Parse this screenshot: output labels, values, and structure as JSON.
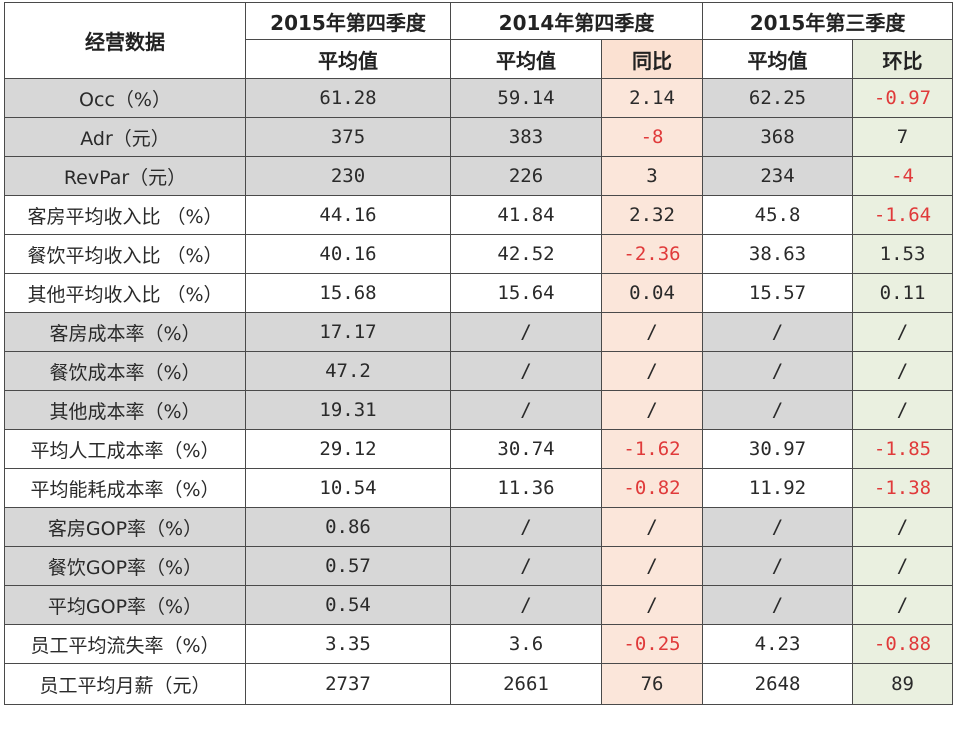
{
  "header": {
    "metric_label": "经营数据",
    "q4_2015": "2015年第四季度",
    "q4_2014": "2014年第四季度",
    "q3_2015": "2015年第三季度",
    "avg_label": "平均值",
    "yoy_label": "同比",
    "qoq_label": "环比"
  },
  "rows": [
    {
      "metric": "Occ（%）",
      "q4_2015": "61.28",
      "q4_2014": "59.14",
      "yoy": "2.14",
      "q3_2015": "62.25",
      "qoq": "-0.97",
      "shade": "gray"
    },
    {
      "metric": "Adr（元）",
      "q4_2015": "375",
      "q4_2014": "383",
      "yoy": "-8",
      "q3_2015": "368",
      "qoq": "7",
      "shade": "gray"
    },
    {
      "metric": "RevPar（元）",
      "q4_2015": "230",
      "q4_2014": "226",
      "yoy": "3",
      "q3_2015": "234",
      "qoq": "-4",
      "shade": "gray"
    },
    {
      "metric": "客房平均收入比 （%）",
      "q4_2015": "44.16",
      "q4_2014": "41.84",
      "yoy": "2.32",
      "q3_2015": "45.8",
      "qoq": "-1.64",
      "shade": "white"
    },
    {
      "metric": "餐饮平均收入比 （%）",
      "q4_2015": "40.16",
      "q4_2014": "42.52",
      "yoy": "-2.36",
      "q3_2015": "38.63",
      "qoq": "1.53",
      "shade": "white"
    },
    {
      "metric": "其他平均收入比 （%）",
      "q4_2015": "15.68",
      "q4_2014": "15.64",
      "yoy": "0.04",
      "q3_2015": "15.57",
      "qoq": "0.11",
      "shade": "white"
    },
    {
      "metric": "客房成本率（%）",
      "q4_2015": "17.17",
      "q4_2014": "/",
      "yoy": "/",
      "q3_2015": "/",
      "qoq": "/",
      "shade": "gray"
    },
    {
      "metric": "餐饮成本率（%）",
      "q4_2015": "47.2",
      "q4_2014": "/",
      "yoy": "/",
      "q3_2015": "/",
      "qoq": "/",
      "shade": "gray"
    },
    {
      "metric": "其他成本率（%）",
      "q4_2015": "19.31",
      "q4_2014": "/",
      "yoy": "/",
      "q3_2015": "/",
      "qoq": "/",
      "shade": "gray"
    },
    {
      "metric": "平均人工成本率（%）",
      "q4_2015": "29.12",
      "q4_2014": "30.74",
      "yoy": "-1.62",
      "q3_2015": "30.97",
      "qoq": "-1.85",
      "shade": "white"
    },
    {
      "metric": "平均能耗成本率（%）",
      "q4_2015": "10.54",
      "q4_2014": "11.36",
      "yoy": "-0.82",
      "q3_2015": "11.92",
      "qoq": "-1.38",
      "shade": "white"
    },
    {
      "metric": "客房GOP率（%）",
      "q4_2015": "0.86",
      "q4_2014": "/",
      "yoy": "/",
      "q3_2015": "/",
      "qoq": "/",
      "shade": "gray"
    },
    {
      "metric": "餐饮GOP率（%）",
      "q4_2015": "0.57",
      "q4_2014": "/",
      "yoy": "/",
      "q3_2015": "/",
      "qoq": "/",
      "shade": "gray"
    },
    {
      "metric": "平均GOP率（%）",
      "q4_2015": "0.54",
      "q4_2014": "/",
      "yoy": "/",
      "q3_2015": "/",
      "qoq": "/",
      "shade": "gray"
    },
    {
      "metric": "员工平均流失率（%）",
      "q4_2015": "3.35",
      "q4_2014": "3.6",
      "yoy": "-0.25",
      "q3_2015": "4.23",
      "qoq": "-0.88",
      "shade": "white"
    },
    {
      "metric": "员工平均月薪（元）",
      "q4_2015": "2737",
      "q4_2014": "2661",
      "yoy": "76",
      "q3_2015": "2648",
      "qoq": "89",
      "shade": "white"
    }
  ],
  "colors": {
    "negative_text": "#e03a3a",
    "gray_row": "#d7d7d7",
    "yoy_column": "#fbe6da",
    "qoq_column": "#eaf0e0"
  }
}
